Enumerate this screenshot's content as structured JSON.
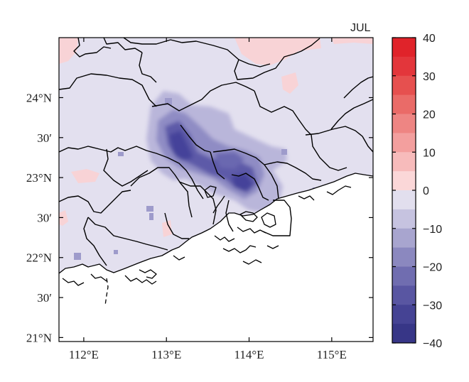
{
  "map": {
    "title": "JUL",
    "lon_ticks": [
      "112°E",
      "113°E",
      "114°E",
      "115°E"
    ],
    "lat_ticks": [
      "24°N",
      "30′",
      "23°N",
      "30′",
      "22°N",
      "30′",
      "21°N"
    ],
    "extent": {
      "lon": [
        111.7,
        115.5
      ],
      "lat": [
        20.95,
        24.75
      ]
    },
    "colors": {
      "background_field": "#e3e0ef",
      "land_boundary": "#000000",
      "ocean": "#ffffff"
    }
  },
  "colorbar": {
    "labels": [
      "40",
      "30",
      "20",
      "10",
      "0",
      "−10",
      "−20",
      "−30",
      "−40"
    ],
    "colors_top_to_bottom": [
      "#e0232a",
      "#e3363b",
      "#e6504f",
      "#ea6b68",
      "#ee8583",
      "#f39f9e",
      "#f7bbbb",
      "#fbd7d8",
      "#e2dfee",
      "#c6c3e0",
      "#a8a5cf",
      "#8b88bf",
      "#706db0",
      "#5956a2",
      "#454394",
      "#373687"
    ]
  }
}
